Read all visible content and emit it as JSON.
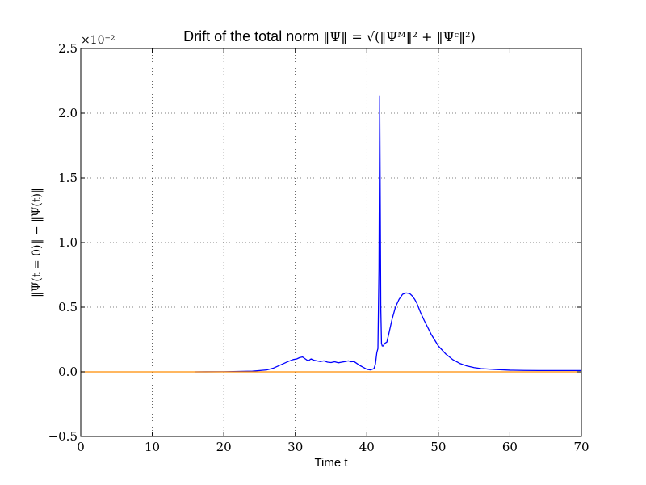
{
  "chart_data": {
    "type": "line",
    "title": "Drift of the total norm ‖Ψ‖ = √(‖Ψᴹ‖² + ‖Ψᶜ‖²)",
    "title_prefix": "Drift of the total norm ",
    "title_math": "‖Ψ‖ = √(‖Ψᴹ‖² + ‖Ψᶜ‖²)",
    "xlabel": "Time t",
    "ylabel": "‖Ψ(t = 0)‖ − ‖Ψ(t)‖",
    "y_multiplier_label": "×10⁻²",
    "xlim": [
      0,
      70
    ],
    "ylim": [
      -0.5,
      2.5
    ],
    "x_ticks": [
      0,
      10,
      20,
      30,
      40,
      50,
      60,
      70
    ],
    "y_ticks": [
      -0.5,
      0.0,
      0.5,
      1.0,
      1.5,
      2.0,
      2.5
    ],
    "x_tick_labels": [
      "0",
      "10",
      "20",
      "30",
      "40",
      "50",
      "60",
      "70"
    ],
    "y_tick_labels": [
      "−0.5",
      "0.0",
      "0.5",
      "1.0",
      "1.5",
      "2.0",
      "2.5"
    ],
    "grid": true,
    "grid_style": "dotted",
    "series": [
      {
        "color": "#0000ff",
        "x": [
          16.0,
          20.0,
          24.0,
          26.0,
          27.0,
          28.0,
          29.0,
          29.7,
          30.2,
          30.6,
          31.0,
          31.4,
          31.8,
          32.2,
          32.6,
          33.0,
          33.5,
          34.0,
          34.5,
          35.0,
          35.5,
          36.0,
          36.5,
          37.0,
          37.4,
          37.8,
          38.2,
          38.6,
          39.0,
          39.5,
          40.0,
          40.5,
          41.0,
          41.2,
          41.4,
          41.55,
          41.7,
          41.8,
          41.88,
          41.95,
          42.05,
          42.15,
          42.3,
          42.5,
          42.8,
          43.1,
          43.5,
          44.0,
          44.5,
          45.0,
          45.5,
          46.0,
          46.3,
          46.7,
          47.0,
          47.5,
          48.0,
          49.0,
          50.0,
          51.0,
          52.0,
          53.0,
          54.0,
          55.0,
          56.0,
          58.0,
          60.0,
          62.0,
          64.0,
          66.0,
          68.0,
          70.0
        ],
        "values": [
          0.0,
          0.001,
          0.005,
          0.015,
          0.03,
          0.055,
          0.08,
          0.095,
          0.1,
          0.11,
          0.115,
          0.1,
          0.085,
          0.1,
          0.09,
          0.085,
          0.08,
          0.085,
          0.075,
          0.072,
          0.078,
          0.07,
          0.075,
          0.08,
          0.085,
          0.078,
          0.08,
          0.065,
          0.05,
          0.035,
          0.02,
          0.015,
          0.025,
          0.06,
          0.15,
          0.18,
          0.8,
          2.13,
          1.3,
          0.5,
          0.22,
          0.2,
          0.2,
          0.22,
          0.23,
          0.3,
          0.4,
          0.5,
          0.56,
          0.6,
          0.61,
          0.605,
          0.59,
          0.56,
          0.53,
          0.46,
          0.4,
          0.29,
          0.2,
          0.14,
          0.095,
          0.065,
          0.045,
          0.033,
          0.025,
          0.018,
          0.013,
          0.011,
          0.01,
          0.01,
          0.01,
          0.01
        ]
      },
      {
        "color": "#ff8c00",
        "x": [
          0,
          70
        ],
        "values": [
          0.0,
          0.0
        ]
      }
    ]
  }
}
